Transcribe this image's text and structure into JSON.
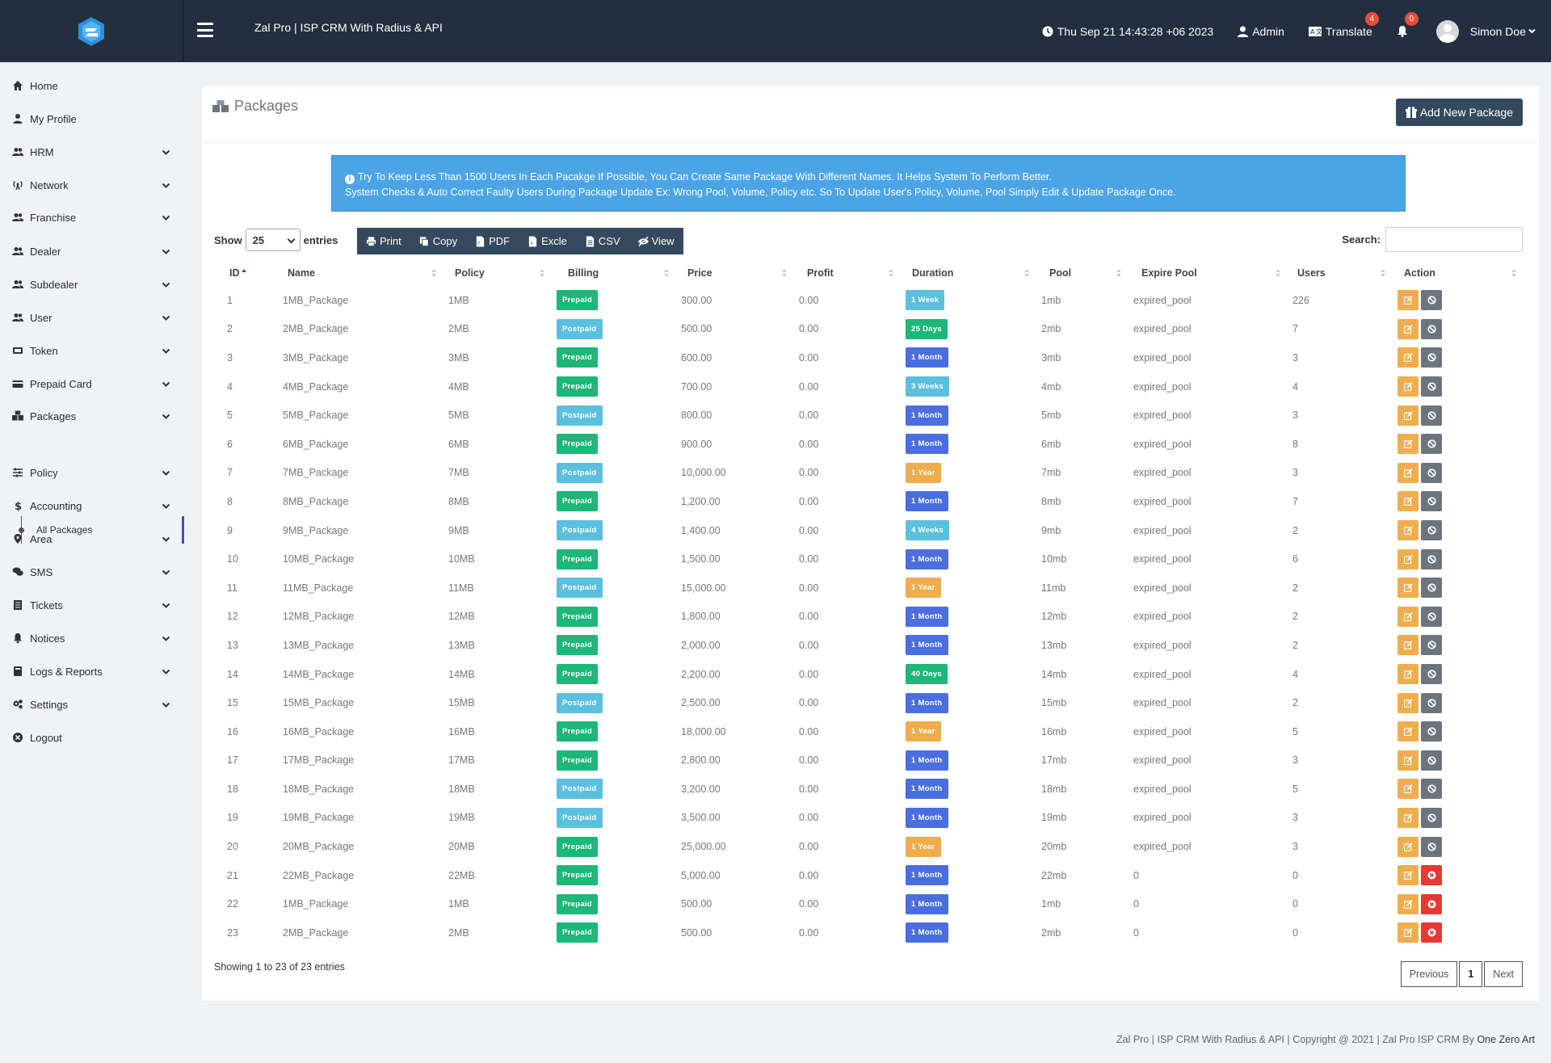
{
  "header": {
    "app_title": "Zal Pro | ISP CRM With Radius & API",
    "datetime": "Thu Sep 21 14:43:28 +06 2023",
    "admin_label": "Admin",
    "translate_label": "Translate",
    "translate_badge": "4",
    "notifications_badge": "0",
    "user_name": "Simon Doe"
  },
  "sidebar": {
    "items": [
      {
        "label": "Home",
        "icon": "home-icon",
        "chevron": false
      },
      {
        "label": "My Profile",
        "icon": "user-icon",
        "chevron": false
      },
      {
        "label": "HRM",
        "icon": "users-icon",
        "chevron": true
      },
      {
        "label": "Network",
        "icon": "antenna-icon",
        "chevron": true
      },
      {
        "label": "Franchise",
        "icon": "users-icon",
        "chevron": true
      },
      {
        "label": "Dealer",
        "icon": "users-icon",
        "chevron": true
      },
      {
        "label": "Subdealer",
        "icon": "users-icon",
        "chevron": true
      },
      {
        "label": "User",
        "icon": "users-icon",
        "chevron": true
      },
      {
        "label": "Token",
        "icon": "ticket-icon",
        "chevron": true
      },
      {
        "label": "Prepaid Card",
        "icon": "card-icon",
        "chevron": true
      },
      {
        "label": "Packages",
        "icon": "cubes-icon",
        "chevron": true
      },
      {
        "label": "Policy",
        "icon": "sliders-icon",
        "chevron": true
      },
      {
        "label": "Accounting",
        "icon": "dollar-icon",
        "chevron": true
      },
      {
        "label": "Area",
        "icon": "map-marker-icon",
        "chevron": true
      },
      {
        "label": "SMS",
        "icon": "chat-icon",
        "chevron": true
      },
      {
        "label": "Tickets",
        "icon": "list-icon",
        "chevron": true
      },
      {
        "label": "Notices",
        "icon": "bell-icon",
        "chevron": true
      },
      {
        "label": "Logs & Reports",
        "icon": "book-icon",
        "chevron": true
      },
      {
        "label": "Settings",
        "icon": "cogs-icon",
        "chevron": true
      },
      {
        "label": "Logout",
        "icon": "power-icon",
        "chevron": false
      }
    ],
    "sub_item": "All Packages"
  },
  "page": {
    "title": "Packages",
    "add_button": "Add New Package",
    "alert_line1": "Try To Keep Less Than 1500 Users In Each Pacakge If Possible, You Can Create Same Package With Different Names. It Helps System To Perform Better.",
    "alert_line2": "System Checks & Auto Correct Faulty Users During Package Update Ex: Wrong Pool, Volume, Policy etc. So To Update User's Policy, Volume, Pool Simply Edit & Update Package Once.",
    "show_label": "Show",
    "entries_label": "entries",
    "entries_value": "25",
    "search_label": "Search:",
    "search_value": "",
    "export_buttons": [
      "Print",
      "Copy",
      "PDF",
      "Excle",
      "CSV",
      "View"
    ],
    "info": "Showing 1 to 23 of 23 entries",
    "pagination": {
      "previous": "Previous",
      "current": "1",
      "next": "Next"
    }
  },
  "colors": {
    "prepaid": "#1cb779",
    "postpaid": "#5bc0de",
    "duration_month": "#4a6ee0",
    "duration_year": "#f0ad4e",
    "duration_days": "#1cb779",
    "duration_weeks": "#5bc0de",
    "duration_week": "#5bc0de",
    "topbar": "#232f3e"
  },
  "table": {
    "columns": [
      "ID",
      "Name",
      "Policy",
      "Billing",
      "Price",
      "Profit",
      "Duration",
      "Pool",
      "Expire Pool",
      "Users",
      "Action"
    ],
    "rows": [
      {
        "id": "1",
        "name": "1MB_Package",
        "policy": "1MB",
        "billing": "Prepaid",
        "price": "300.00",
        "profit": "0.00",
        "duration": "1 Week",
        "dtype": "week",
        "pool": "1mb",
        "expire": "expired_pool",
        "users": "226",
        "act": "block"
      },
      {
        "id": "2",
        "name": "2MB_Package",
        "policy": "2MB",
        "billing": "Postpaid",
        "price": "500.00",
        "profit": "0.00",
        "duration": "25 Days",
        "dtype": "days",
        "pool": "2mb",
        "expire": "expired_pool",
        "users": "7",
        "act": "block"
      },
      {
        "id": "3",
        "name": "3MB_Package",
        "policy": "3MB",
        "billing": "Prepaid",
        "price": "600.00",
        "profit": "0.00",
        "duration": "1 Month",
        "dtype": "month",
        "pool": "3mb",
        "expire": "expired_pool",
        "users": "3",
        "act": "block"
      },
      {
        "id": "4",
        "name": "4MB_Package",
        "policy": "4MB",
        "billing": "Prepaid",
        "price": "700.00",
        "profit": "0.00",
        "duration": "3 Weeks",
        "dtype": "weeks",
        "pool": "4mb",
        "expire": "expired_pool",
        "users": "4",
        "act": "block"
      },
      {
        "id": "5",
        "name": "5MB_Package",
        "policy": "5MB",
        "billing": "Postpaid",
        "price": "800.00",
        "profit": "0.00",
        "duration": "1 Month",
        "dtype": "month",
        "pool": "5mb",
        "expire": "expired_pool",
        "users": "3",
        "act": "block"
      },
      {
        "id": "6",
        "name": "6MB_Package",
        "policy": "6MB",
        "billing": "Prepaid",
        "price": "900.00",
        "profit": "0.00",
        "duration": "1 Month",
        "dtype": "month",
        "pool": "6mb",
        "expire": "expired_pool",
        "users": "8",
        "act": "block"
      },
      {
        "id": "7",
        "name": "7MB_Package",
        "policy": "7MB",
        "billing": "Postpaid",
        "price": "10,000.00",
        "profit": "0.00",
        "duration": "1 Year",
        "dtype": "year",
        "pool": "7mb",
        "expire": "expired_pool",
        "users": "3",
        "act": "block"
      },
      {
        "id": "8",
        "name": "8MB_Package",
        "policy": "8MB",
        "billing": "Prepaid",
        "price": "1,200.00",
        "profit": "0.00",
        "duration": "1 Month",
        "dtype": "month",
        "pool": "8mb",
        "expire": "expired_pool",
        "users": "7",
        "act": "block"
      },
      {
        "id": "9",
        "name": "9MB_Package",
        "policy": "9MB",
        "billing": "Postpaid",
        "price": "1,400.00",
        "profit": "0.00",
        "duration": "4 Weeks",
        "dtype": "weeks",
        "pool": "9mb",
        "expire": "expired_pool",
        "users": "2",
        "act": "block"
      },
      {
        "id": "10",
        "name": "10MB_Package",
        "policy": "10MB",
        "billing": "Prepaid",
        "price": "1,500.00",
        "profit": "0.00",
        "duration": "1 Month",
        "dtype": "month",
        "pool": "10mb",
        "expire": "expired_pool",
        "users": "6",
        "act": "block"
      },
      {
        "id": "11",
        "name": "11MB_Package",
        "policy": "11MB",
        "billing": "Postpaid",
        "price": "15,000.00",
        "profit": "0.00",
        "duration": "1 Year",
        "dtype": "year",
        "pool": "11mb",
        "expire": "expired_pool",
        "users": "2",
        "act": "block"
      },
      {
        "id": "12",
        "name": "12MB_Package",
        "policy": "12MB",
        "billing": "Prepaid",
        "price": "1,800.00",
        "profit": "0.00",
        "duration": "1 Month",
        "dtype": "month",
        "pool": "12mb",
        "expire": "expired_pool",
        "users": "2",
        "act": "block"
      },
      {
        "id": "13",
        "name": "13MB_Package",
        "policy": "13MB",
        "billing": "Prepaid",
        "price": "2,000.00",
        "profit": "0.00",
        "duration": "1 Month",
        "dtype": "month",
        "pool": "13mb",
        "expire": "expired_pool",
        "users": "2",
        "act": "block"
      },
      {
        "id": "14",
        "name": "14MB_Package",
        "policy": "14MB",
        "billing": "Prepaid",
        "price": "2,200.00",
        "profit": "0.00",
        "duration": "40 Days",
        "dtype": "days",
        "pool": "14mb",
        "expire": "expired_pool",
        "users": "4",
        "act": "block"
      },
      {
        "id": "15",
        "name": "15MB_Package",
        "policy": "15MB",
        "billing": "Postpaid",
        "price": "2,500.00",
        "profit": "0.00",
        "duration": "1 Month",
        "dtype": "month",
        "pool": "15mb",
        "expire": "expired_pool",
        "users": "2",
        "act": "block"
      },
      {
        "id": "16",
        "name": "16MB_Package",
        "policy": "16MB",
        "billing": "Prepaid",
        "price": "18,000.00",
        "profit": "0.00",
        "duration": "1 Year",
        "dtype": "year",
        "pool": "16mb",
        "expire": "expired_pool",
        "users": "5",
        "act": "block"
      },
      {
        "id": "17",
        "name": "17MB_Package",
        "policy": "17MB",
        "billing": "Prepaid",
        "price": "2,800.00",
        "profit": "0.00",
        "duration": "1 Month",
        "dtype": "month",
        "pool": "17mb",
        "expire": "expired_pool",
        "users": "3",
        "act": "block"
      },
      {
        "id": "18",
        "name": "18MB_Package",
        "policy": "18MB",
        "billing": "Postpaid",
        "price": "3,200.00",
        "profit": "0.00",
        "duration": "1 Month",
        "dtype": "month",
        "pool": "18mb",
        "expire": "expired_pool",
        "users": "5",
        "act": "block"
      },
      {
        "id": "19",
        "name": "19MB_Package",
        "policy": "19MB",
        "billing": "Postpaid",
        "price": "3,500.00",
        "profit": "0.00",
        "duration": "1 Month",
        "dtype": "month",
        "pool": "19mb",
        "expire": "expired_pool",
        "users": "3",
        "act": "block"
      },
      {
        "id": "20",
        "name": "20MB_Package",
        "policy": "20MB",
        "billing": "Prepaid",
        "price": "25,000.00",
        "profit": "0.00",
        "duration": "1 Year",
        "dtype": "year",
        "pool": "20mb",
        "expire": "expired_pool",
        "users": "3",
        "act": "block"
      },
      {
        "id": "21",
        "name": "22MB_Package",
        "policy": "22MB",
        "billing": "Prepaid",
        "price": "5,000.00",
        "profit": "0.00",
        "duration": "1 Month",
        "dtype": "month",
        "pool": "22mb",
        "expire": "0",
        "users": "0",
        "act": "delete"
      },
      {
        "id": "22",
        "name": "1MB_Package",
        "policy": "1MB",
        "billing": "Prepaid",
        "price": "500.00",
        "profit": "0.00",
        "duration": "1 Month",
        "dtype": "month",
        "pool": "1mb",
        "expire": "0",
        "users": "0",
        "act": "delete"
      },
      {
        "id": "23",
        "name": "2MB_Package",
        "policy": "2MB",
        "billing": "Prepaid",
        "price": "500.00",
        "profit": "0.00",
        "duration": "1 Month",
        "dtype": "month",
        "pool": "2mb",
        "expire": "0",
        "users": "0",
        "act": "delete"
      }
    ]
  },
  "footer": {
    "text": "Zal Pro | ISP CRM With Radius & API | Copyright @ 2021 | Zal Pro ISP CRM By",
    "brand": "One Zero Art"
  }
}
